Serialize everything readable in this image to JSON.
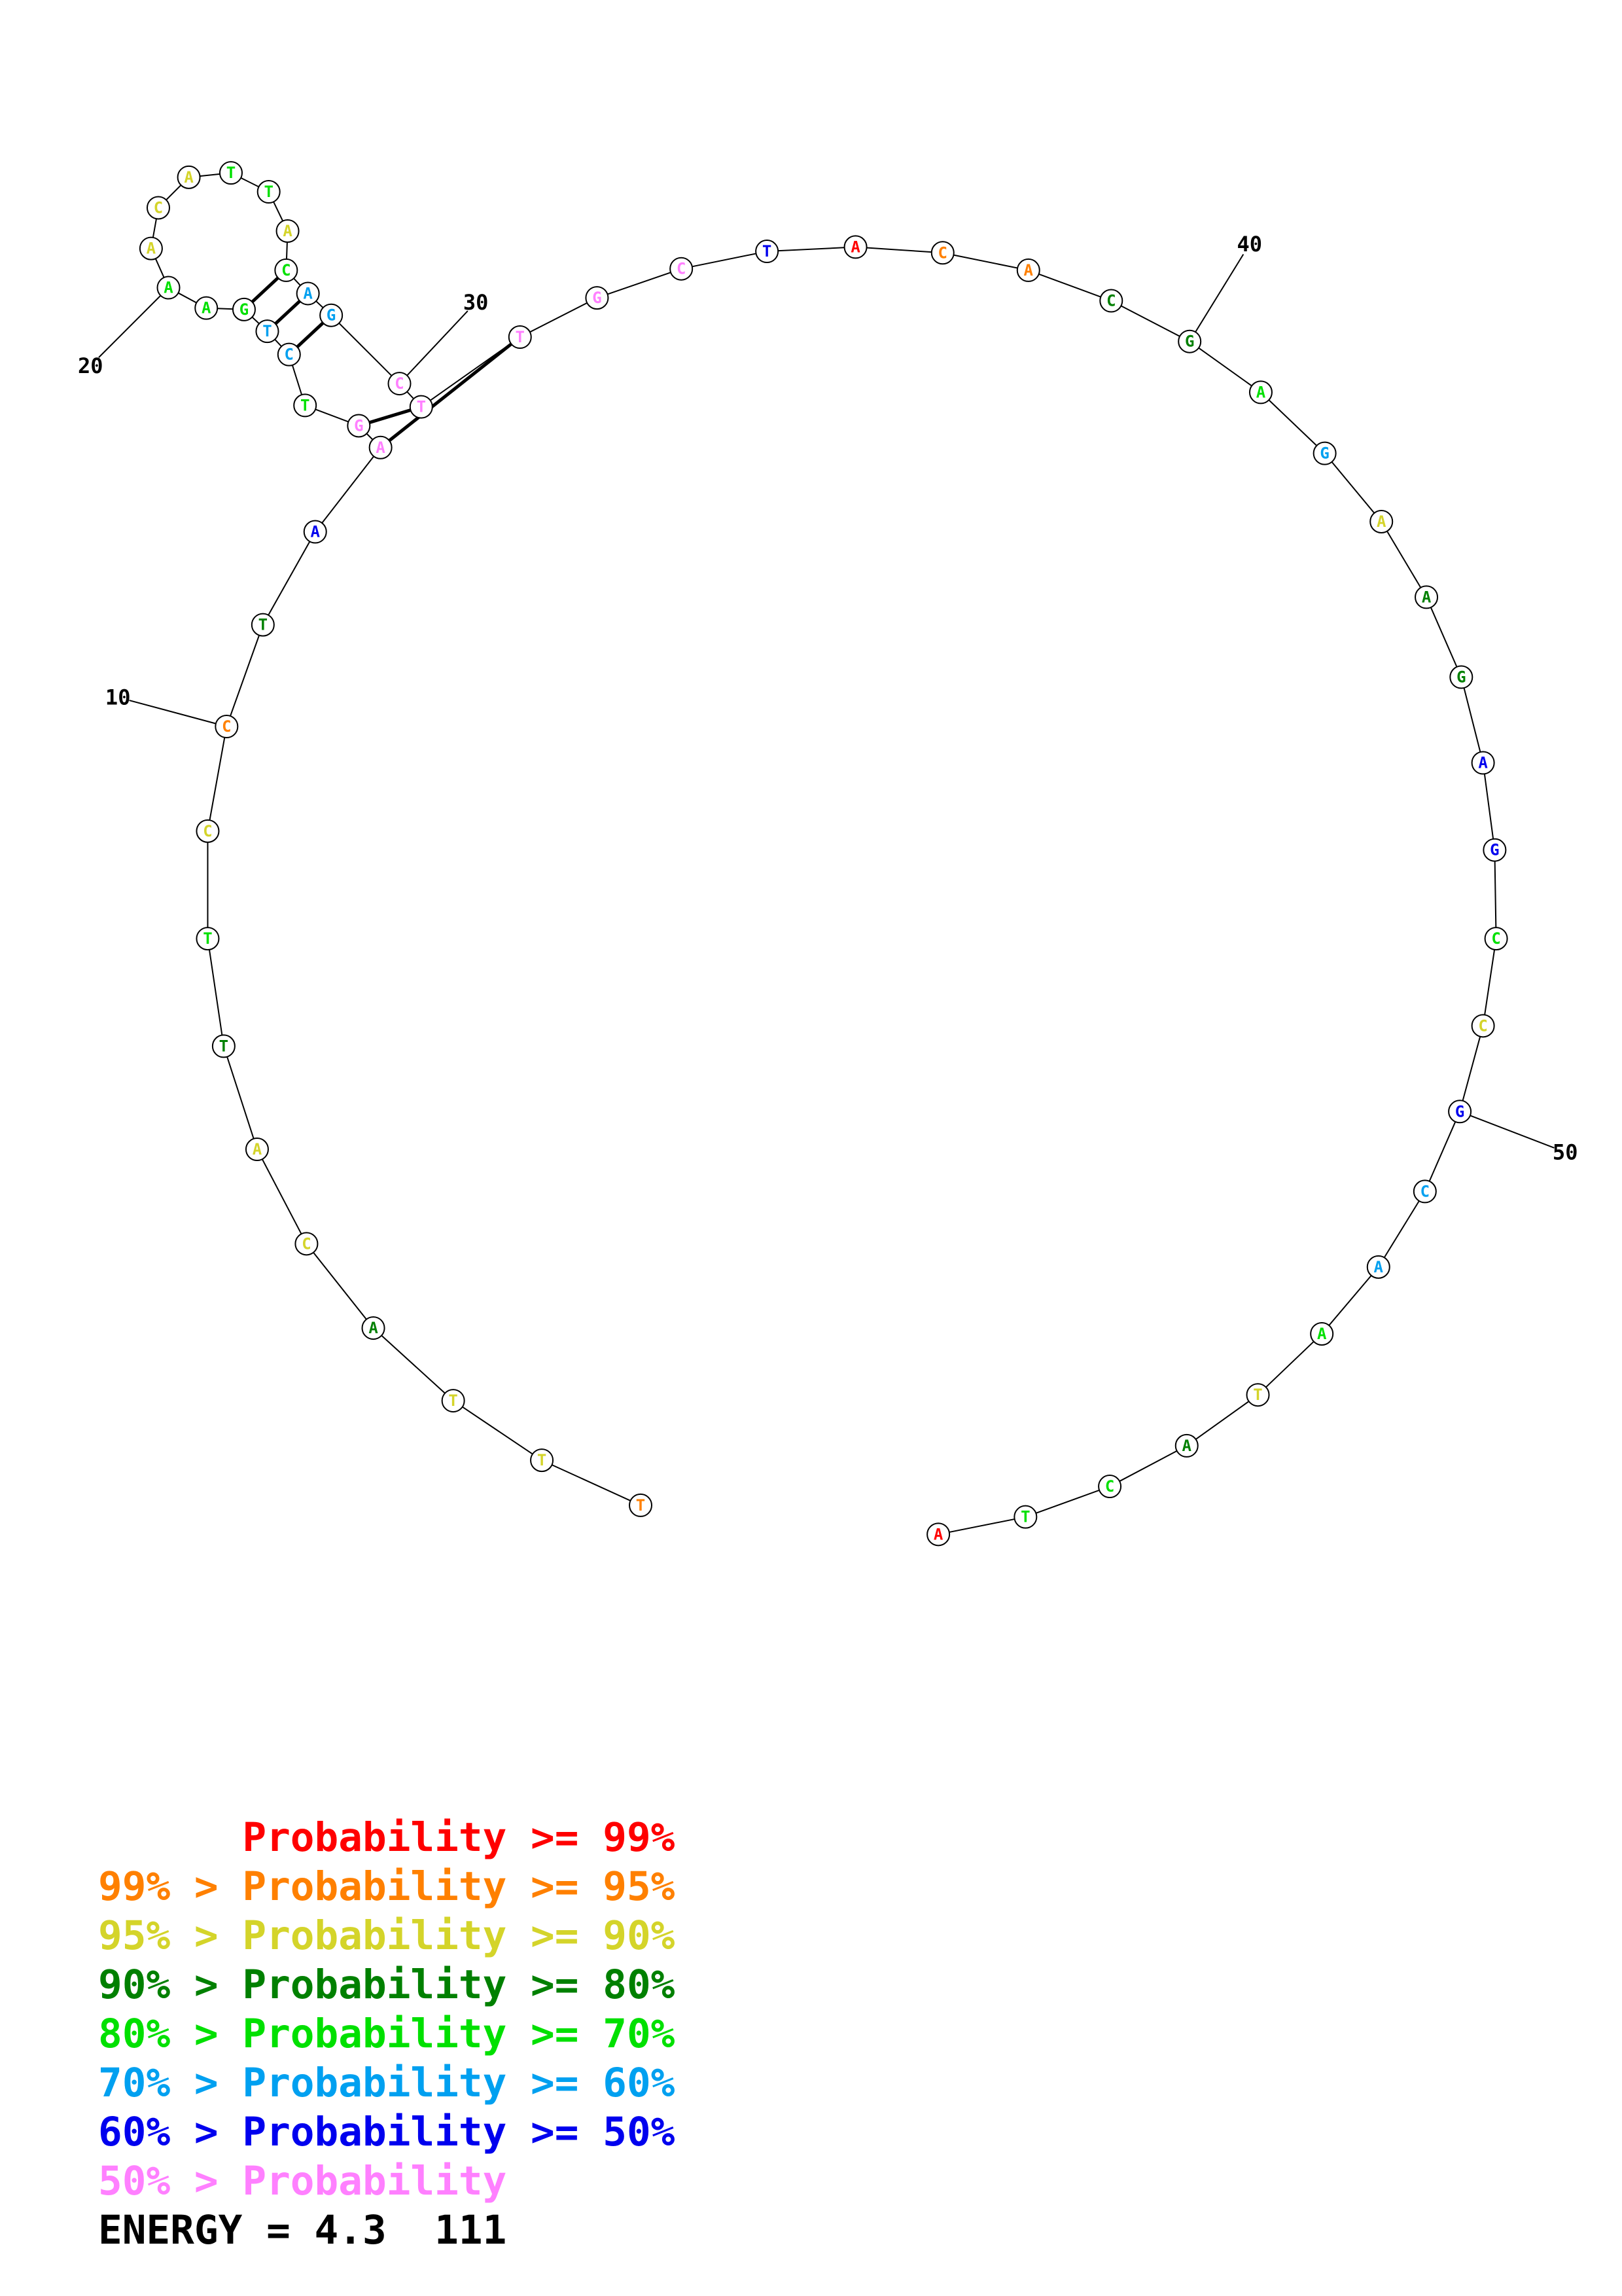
{
  "sequence": [
    {
      "base": "T",
      "color": "#ff8000"
    },
    {
      "base": "T",
      "color": "#d4d42a"
    },
    {
      "base": "T",
      "color": "#d4d42a"
    },
    {
      "base": "A",
      "color": "#008000"
    },
    {
      "base": "C",
      "color": "#d4d42a"
    },
    {
      "base": "A",
      "color": "#d4d42a"
    },
    {
      "base": "T",
      "color": "#008000"
    },
    {
      "base": "T",
      "color": "#00e000"
    },
    {
      "base": "C",
      "color": "#d4d42a"
    },
    {
      "base": "C",
      "color": "#ff8000"
    },
    {
      "base": "T",
      "color": "#008000"
    },
    {
      "base": "A",
      "color": "#0000ee"
    },
    {
      "base": "A",
      "color": "#ff80ff"
    },
    {
      "base": "G",
      "color": "#ff80ff"
    },
    {
      "base": "T",
      "color": "#00e000"
    },
    {
      "base": "C",
      "color": "#00a0f0"
    },
    {
      "base": "T",
      "color": "#00a0f0"
    },
    {
      "base": "G",
      "color": "#00e000"
    },
    {
      "base": "A",
      "color": "#00e000"
    },
    {
      "base": "A",
      "color": "#00e000"
    },
    {
      "base": "A",
      "color": "#d4d42a"
    },
    {
      "base": "C",
      "color": "#d4d42a"
    },
    {
      "base": "A",
      "color": "#d4d42a"
    },
    {
      "base": "T",
      "color": "#00e000"
    },
    {
      "base": "T",
      "color": "#00e000"
    },
    {
      "base": "A",
      "color": "#d4d42a"
    },
    {
      "base": "C",
      "color": "#00e000"
    },
    {
      "base": "A",
      "color": "#00a0f0"
    },
    {
      "base": "G",
      "color": "#00a0f0"
    },
    {
      "base": "C",
      "color": "#ff80ff"
    },
    {
      "base": "T",
      "color": "#ff80ff"
    },
    {
      "base": "T",
      "color": "#ff80ff"
    },
    {
      "base": "G",
      "color": "#ff80ff"
    },
    {
      "base": "C",
      "color": "#ff80ff"
    },
    {
      "base": "T",
      "color": "#0000ee"
    },
    {
      "base": "A",
      "color": "#ff0000"
    },
    {
      "base": "C",
      "color": "#ff8000"
    },
    {
      "base": "A",
      "color": "#ff8000"
    },
    {
      "base": "C",
      "color": "#008000"
    },
    {
      "base": "G",
      "color": "#008000"
    },
    {
      "base": "A",
      "color": "#00e000"
    },
    {
      "base": "G",
      "color": "#00a0f0"
    },
    {
      "base": "A",
      "color": "#d4d42a"
    },
    {
      "base": "A",
      "color": "#008000"
    },
    {
      "base": "G",
      "color": "#008000"
    },
    {
      "base": "A",
      "color": "#0000ee"
    },
    {
      "base": "G",
      "color": "#0000ee"
    },
    {
      "base": "C",
      "color": "#00e000"
    },
    {
      "base": "C",
      "color": "#d4d42a"
    },
    {
      "base": "G",
      "color": "#0000ee"
    },
    {
      "base": "C",
      "color": "#00a0f0"
    },
    {
      "base": "A",
      "color": "#00a0f0"
    },
    {
      "base": "A",
      "color": "#00e000"
    },
    {
      "base": "T",
      "color": "#d4d42a"
    },
    {
      "base": "A",
      "color": "#008000"
    },
    {
      "base": "C",
      "color": "#00e000"
    },
    {
      "base": "T",
      "color": "#00e000"
    },
    {
      "base": "A",
      "color": "#ff0000"
    }
  ],
  "pairs": [
    [
      12,
      31
    ],
    [
      13,
      30
    ],
    [
      15,
      28
    ],
    [
      16,
      27
    ],
    [
      17,
      26
    ]
  ],
  "position_labels": [
    {
      "index": 9,
      "text": "10"
    },
    {
      "index": 19,
      "text": "20"
    },
    {
      "index": 29,
      "text": "30"
    },
    {
      "index": 39,
      "text": "40"
    },
    {
      "index": 49,
      "text": "50"
    }
  ],
  "legend": [
    {
      "prefix": "",
      "label": "Probability >= 99%",
      "color": "#ff0000"
    },
    {
      "prefix": "99% > ",
      "label": "Probability >= 95%",
      "color": "#ff8000"
    },
    {
      "prefix": "95% > ",
      "label": "Probability >= 90%",
      "color": "#d4d42a"
    },
    {
      "prefix": "90% > ",
      "label": "Probability >= 80%",
      "color": "#008000"
    },
    {
      "prefix": "80% > ",
      "label": "Probability >= 70%",
      "color": "#00e000"
    },
    {
      "prefix": "70% > ",
      "label": "Probability >= 60%",
      "color": "#00a0f0"
    },
    {
      "prefix": "60% > ",
      "label": "Probability >= 50%",
      "color": "#0000ee"
    },
    {
      "prefix": "50% > ",
      "label": "Probability",
      "color": "#ff80ff"
    }
  ],
  "energy": {
    "label": "ENERGY = 4.3",
    "value": "111"
  }
}
